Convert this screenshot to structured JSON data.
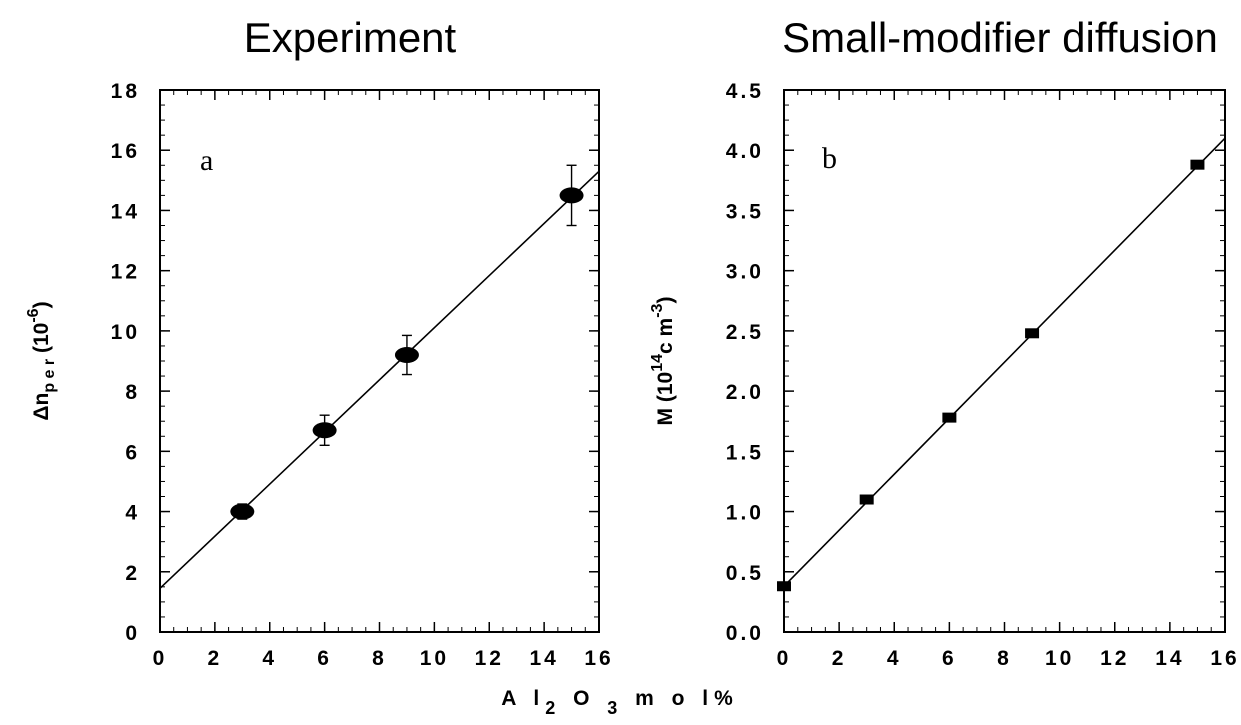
{
  "chart_data": [
    {
      "type": "scatter",
      "panel_label": "a",
      "title": "Experiment",
      "ylabel": "Δnₚₑᵣ (10⁻⁶)",
      "ylabel_parts": [
        "Δn",
        "p e r",
        " (1",
        "0",
        "-6",
        ")"
      ],
      "xlim": [
        0,
        16
      ],
      "ylim": [
        0,
        18
      ],
      "x_ticks": [
        0,
        2,
        4,
        6,
        8,
        10,
        12,
        14,
        16
      ],
      "y_ticks": [
        0,
        2,
        4,
        6,
        8,
        10,
        12,
        14,
        16,
        18
      ],
      "x_tick_labels": [
        "0",
        "2",
        "4",
        "6",
        "8",
        "10",
        "12",
        "14",
        "16"
      ],
      "y_tick_labels": [
        "0",
        "2",
        "4",
        "6",
        "8",
        "10",
        "12",
        "14",
        "16",
        "18"
      ],
      "series": [
        {
          "marker": "ellipse",
          "x": [
            3,
            6,
            9,
            15
          ],
          "y": [
            4.0,
            6.7,
            9.2,
            14.5
          ],
          "yerr": [
            0.25,
            0.5,
            0.65,
            1.0
          ]
        }
      ],
      "fit_line": {
        "x": [
          0,
          16
        ],
        "y": [
          1.45,
          15.3
        ]
      }
    },
    {
      "type": "scatter",
      "panel_label": "b",
      "title": "Small-modifier diffusion",
      "ylabel": "M (10¹⁴cm⁻³)",
      "ylabel_parts": [
        "M  (1",
        "0",
        "14",
        "c m",
        "-3",
        ")"
      ],
      "xlim": [
        0,
        16
      ],
      "ylim": [
        0,
        4.5
      ],
      "x_ticks": [
        0,
        2,
        4,
        6,
        8,
        10,
        12,
        14,
        16
      ],
      "y_ticks": [
        0,
        0.5,
        1.0,
        1.5,
        2.0,
        2.5,
        3.0,
        3.5,
        4.0,
        4.5
      ],
      "x_tick_labels": [
        "0",
        "2",
        "4",
        "6",
        "8",
        "10",
        "12",
        "14",
        "16"
      ],
      "y_tick_labels": [
        "0.0",
        "0.5",
        "1.0",
        "1.5",
        "2.0",
        "2.5",
        "3.0",
        "3.5",
        "4.0",
        "4.5"
      ],
      "series": [
        {
          "marker": "square",
          "x": [
            0,
            3,
            6,
            9,
            15
          ],
          "y": [
            0.38,
            1.1,
            1.78,
            2.48,
            3.88
          ]
        }
      ],
      "fit_line": {
        "x": [
          0,
          16
        ],
        "y": [
          0.38,
          4.1
        ]
      }
    }
  ],
  "shared_xlabel_parts": [
    "A l",
    "2",
    " O ",
    "3",
    "  m o l%"
  ]
}
